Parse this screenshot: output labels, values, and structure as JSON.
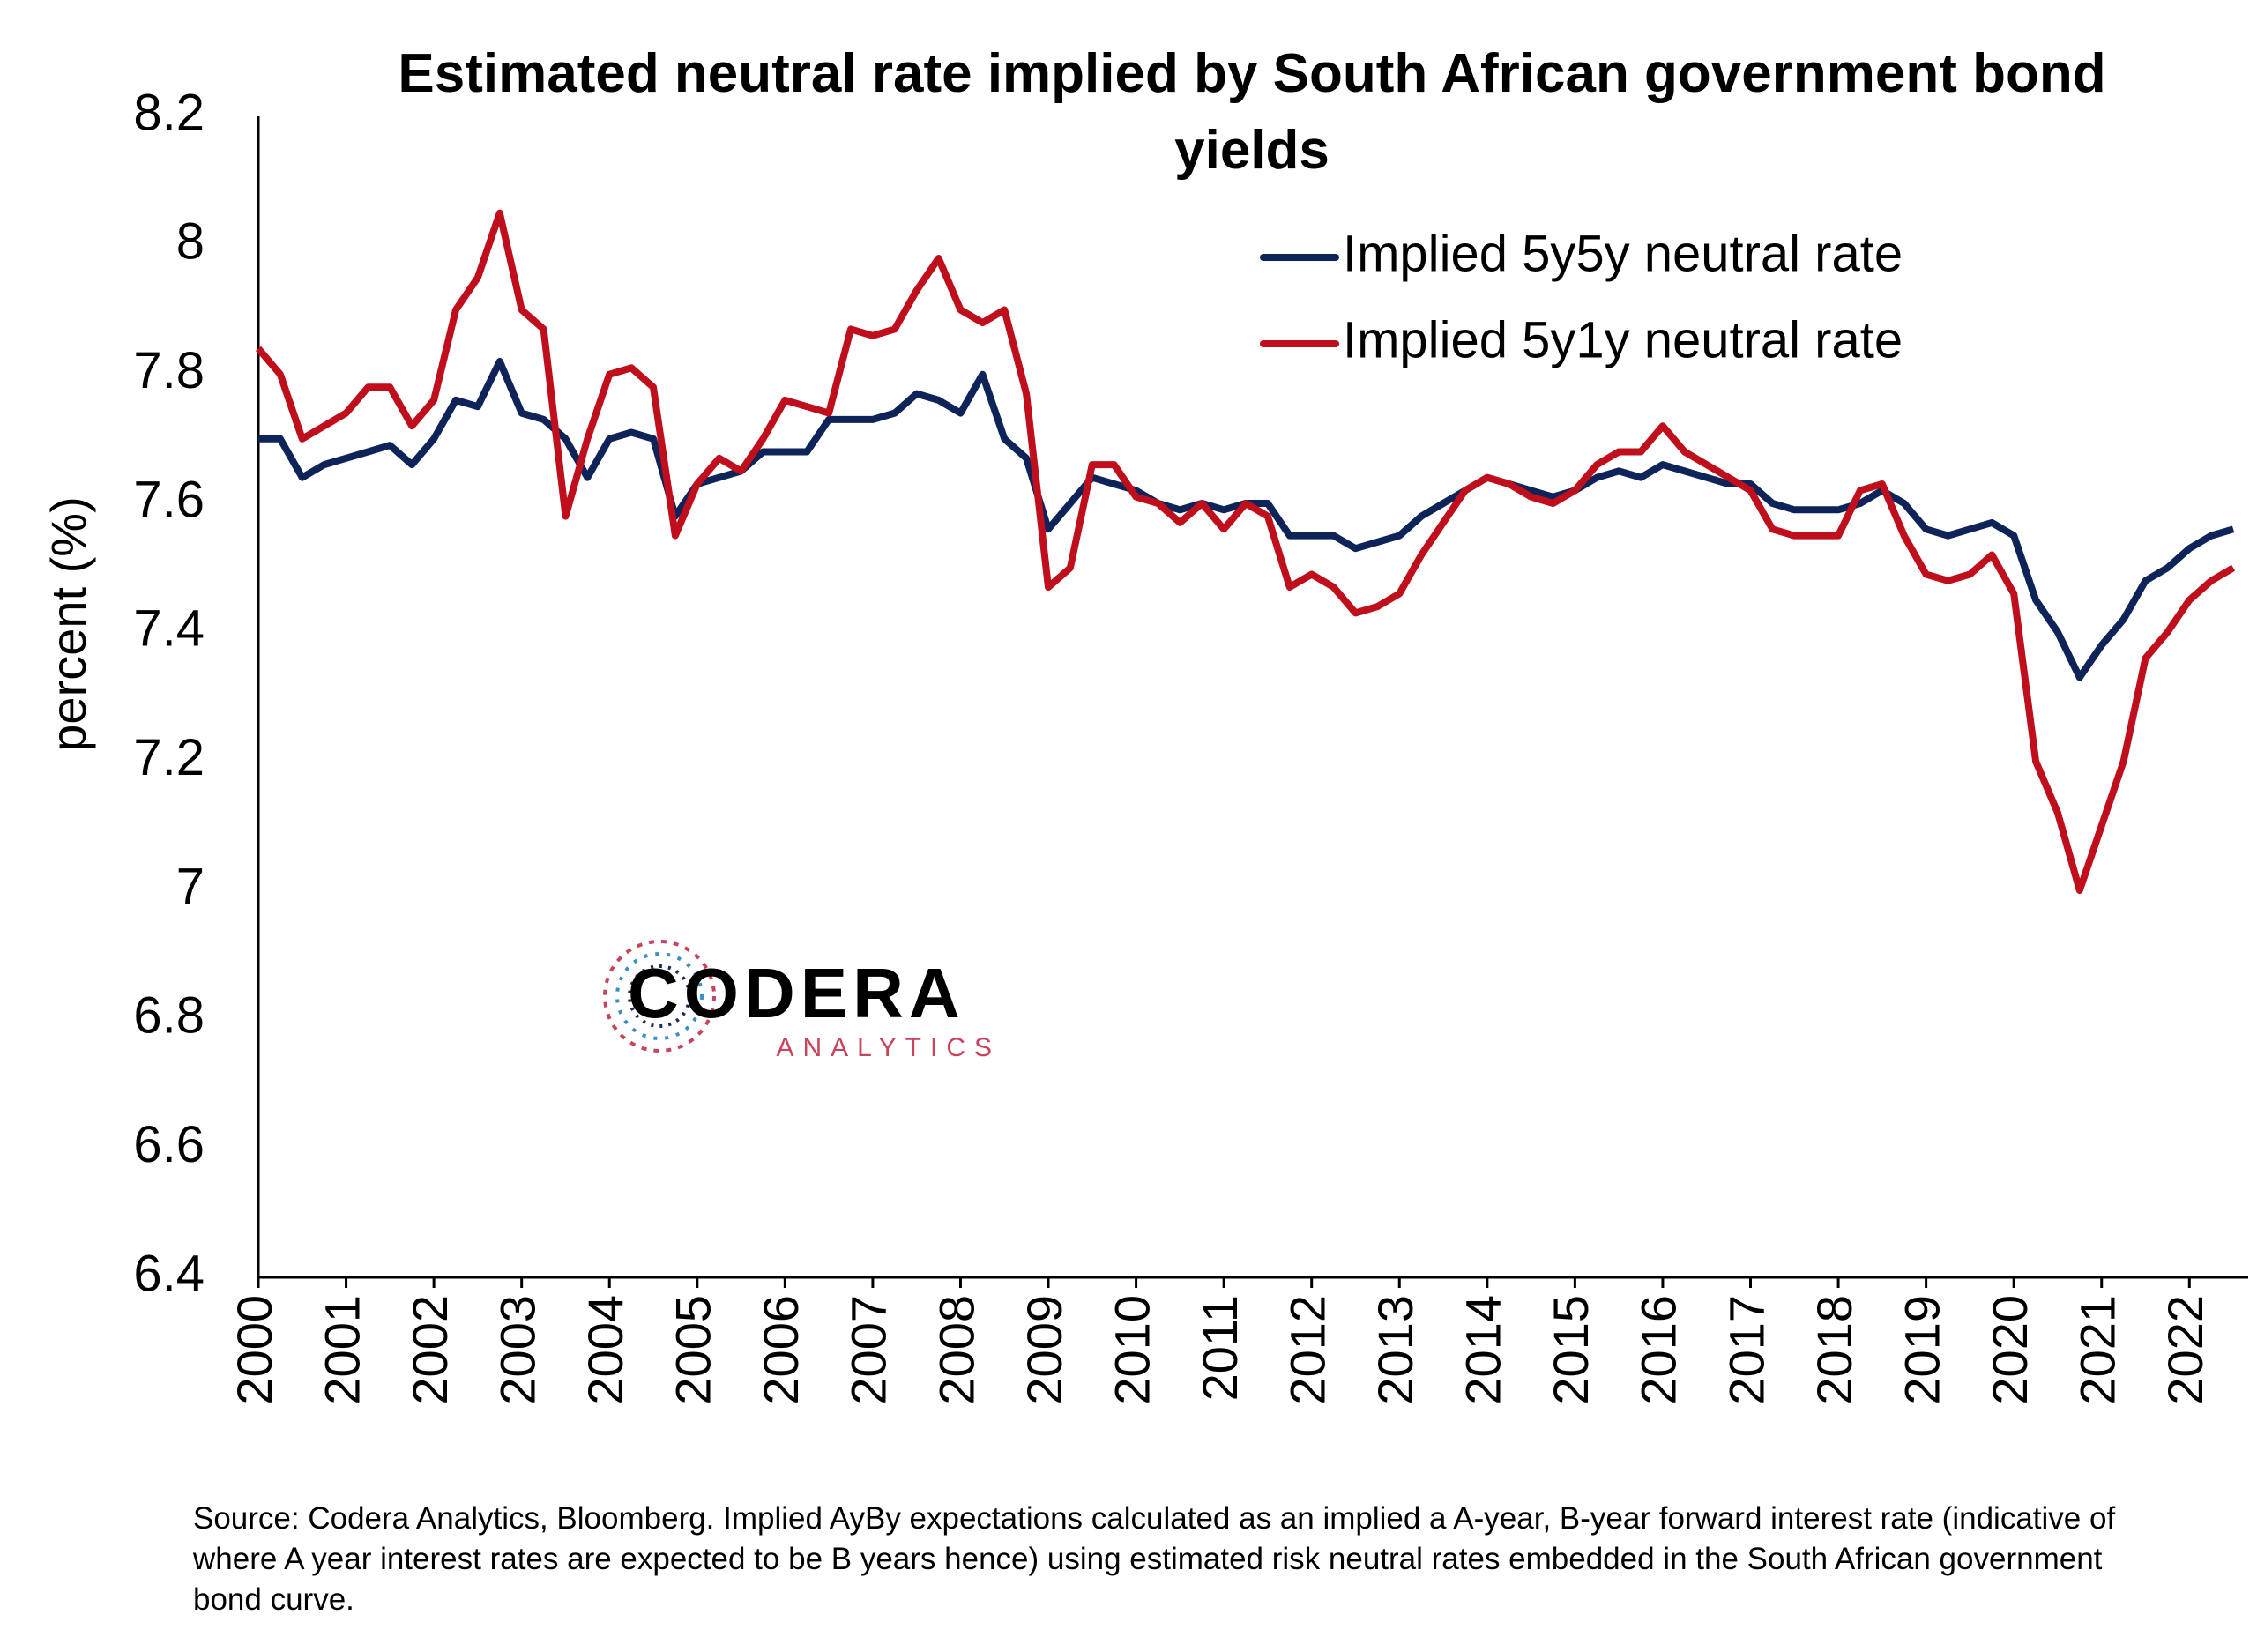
{
  "chart_data": {
    "type": "line",
    "title": "Estimated neutral rate implied by South African government bond yields",
    "y_label": "percent (%)",
    "source": "Source: Codera Analytics, Bloomberg. Implied AyBy expectations calculated as an implied a A-year, B-year forward interest rate (indicative of where A year interest rates are expected to be B years hence) using estimated risk neutral rates embedded in the South African government bond curve.",
    "logo": {
      "name": "CODERA",
      "sub": "ANALYTICS"
    },
    "xlim": [
      2000,
      2022.67
    ],
    "xticks": [
      2000,
      2001,
      2002,
      2003,
      2004,
      2005,
      2006,
      2007,
      2008,
      2009,
      2010,
      2011,
      2012,
      2013,
      2014,
      2015,
      2016,
      2017,
      2018,
      2019,
      2020,
      2021,
      2022
    ],
    "ylim": [
      6.4,
      8.2
    ],
    "yticks": [
      8.2,
      8,
      7.8,
      7.6,
      7.4,
      7.2,
      7,
      6.8,
      6.6,
      6.4
    ],
    "legend": "top-right",
    "x": [
      2000,
      2000.25,
      2000.5,
      2000.75,
      2001,
      2001.25,
      2001.5,
      2001.75,
      2002,
      2002.25,
      2002.5,
      2002.75,
      2003,
      2003.25,
      2003.5,
      2003.75,
      2004,
      2004.25,
      2004.5,
      2004.75,
      2005,
      2005.25,
      2005.5,
      2005.75,
      2006,
      2006.25,
      2006.5,
      2006.75,
      2007,
      2007.25,
      2007.5,
      2007.75,
      2008,
      2008.25,
      2008.5,
      2008.75,
      2009,
      2009.25,
      2009.5,
      2009.75,
      2010,
      2010.25,
      2010.5,
      2010.75,
      2011,
      2011.25,
      2011.5,
      2011.75,
      2012,
      2012.25,
      2012.5,
      2012.75,
      2013,
      2013.25,
      2013.5,
      2013.75,
      2014,
      2014.25,
      2014.5,
      2014.75,
      2015,
      2015.25,
      2015.5,
      2015.75,
      2016,
      2016.25,
      2016.5,
      2016.75,
      2017,
      2017.25,
      2017.5,
      2017.75,
      2018,
      2018.25,
      2018.5,
      2018.75,
      2019,
      2019.25,
      2019.5,
      2019.75,
      2020,
      2020.25,
      2020.5,
      2020.75,
      2021,
      2021.25,
      2021.5,
      2021.75,
      2022,
      2022.25,
      2022.5
    ],
    "series": [
      {
        "name": "Implied 5y5y neutral rate",
        "color": "#0e2459",
        "values": [
          7.7,
          7.7,
          7.64,
          7.66,
          7.67,
          7.68,
          7.69,
          7.66,
          7.7,
          7.76,
          7.75,
          7.82,
          7.74,
          7.73,
          7.7,
          7.64,
          7.7,
          7.71,
          7.7,
          7.58,
          7.63,
          7.64,
          7.65,
          7.68,
          7.68,
          7.68,
          7.73,
          7.73,
          7.73,
          7.74,
          7.77,
          7.76,
          7.74,
          7.8,
          7.7,
          7.67,
          7.56,
          7.6,
          7.64,
          7.63,
          7.62,
          7.6,
          7.59,
          7.6,
          7.59,
          7.6,
          7.6,
          7.55,
          7.55,
          7.55,
          7.53,
          7.54,
          7.55,
          7.58,
          7.6,
          7.62,
          7.64,
          7.63,
          7.62,
          7.61,
          7.62,
          7.64,
          7.65,
          7.64,
          7.66,
          7.65,
          7.64,
          7.63,
          7.63,
          7.6,
          7.59,
          7.59,
          7.59,
          7.6,
          7.62,
          7.6,
          7.56,
          7.55,
          7.56,
          7.57,
          7.55,
          7.45,
          7.4,
          7.33,
          7.38,
          7.42,
          7.48,
          7.5,
          7.53,
          7.55,
          7.56
        ]
      },
      {
        "name": "Implied 5y1y neutral rate",
        "color": "#c00f1c",
        "values": [
          7.84,
          7.8,
          7.7,
          7.72,
          7.74,
          7.78,
          7.78,
          7.72,
          7.76,
          7.9,
          7.95,
          8.05,
          7.9,
          7.87,
          7.58,
          7.7,
          7.8,
          7.81,
          7.78,
          7.55,
          7.63,
          7.67,
          7.65,
          7.7,
          7.76,
          7.75,
          7.74,
          7.87,
          7.86,
          7.87,
          7.93,
          7.98,
          7.9,
          7.88,
          7.9,
          7.77,
          7.47,
          7.5,
          7.66,
          7.66,
          7.61,
          7.6,
          7.57,
          7.6,
          7.56,
          7.6,
          7.58,
          7.47,
          7.49,
          7.47,
          7.43,
          7.44,
          7.46,
          7.52,
          7.57,
          7.62,
          7.64,
          7.63,
          7.61,
          7.6,
          7.62,
          7.66,
          7.68,
          7.68,
          7.72,
          7.68,
          7.66,
          7.64,
          7.62,
          7.56,
          7.55,
          7.55,
          7.55,
          7.62,
          7.63,
          7.55,
          7.49,
          7.48,
          7.49,
          7.52,
          7.46,
          7.2,
          7.12,
          7.0,
          7.1,
          7.2,
          7.36,
          7.4,
          7.45,
          7.48,
          7.5
        ]
      }
    ]
  }
}
